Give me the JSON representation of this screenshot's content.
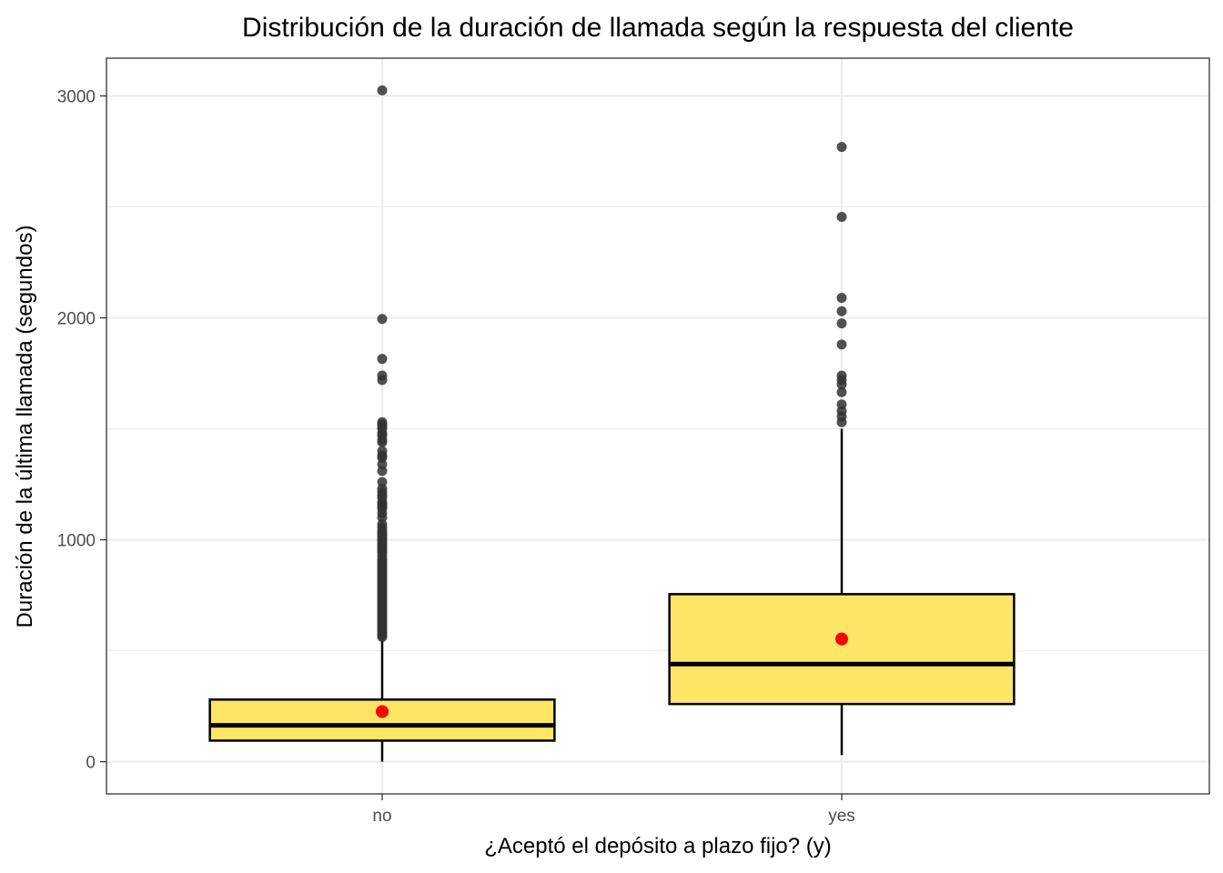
{
  "chart_data": {
    "type": "boxplot",
    "title": "Distribución de la duración de llamada según la respuesta del cliente",
    "xlabel": "¿Aceptó el depósito a plazo fijo? (y)",
    "ylabel": "Duración de la última llamada (segundos)",
    "categories": [
      "no",
      "yes"
    ],
    "ylim": [
      -145,
      3170
    ],
    "yticks": [
      0,
      1000,
      2000,
      3000
    ],
    "grid": true,
    "colors": {
      "box_fill": "#FFE566",
      "box_stroke": "#000000",
      "mean_point": "#FF0000",
      "outlier": "#333333",
      "grid": "#EBEBEB",
      "panel_border": "#333333"
    },
    "boxes": [
      {
        "category": "no",
        "min": 0,
        "q1": 95,
        "median": 164,
        "q3": 280,
        "whisker_high": 555,
        "mean": 226,
        "outliers": [
          3025,
          1995,
          1815,
          1740,
          1720,
          1530,
          1520,
          1510,
          1500,
          1480,
          1470,
          1450,
          1440,
          1400,
          1380,
          1370,
          1340,
          1310,
          1260,
          1230,
          1215,
          1200,
          1190,
          1170,
          1160,
          1150,
          1140,
          1120,
          1100,
          1070,
          1055,
          1040,
          1030,
          1020,
          1010,
          1000,
          990,
          980,
          970,
          960,
          950,
          940,
          925,
          910,
          900,
          890,
          880,
          870,
          860,
          850,
          840,
          830,
          820,
          810,
          800,
          790,
          780,
          770,
          760,
          750,
          740,
          730,
          720,
          710,
          700,
          690,
          680,
          670,
          660,
          650,
          640,
          630,
          620,
          610,
          600,
          590,
          580,
          570,
          562
        ]
      },
      {
        "category": "yes",
        "min": 30,
        "q1": 260,
        "median": 440,
        "q3": 755,
        "whisker_high": 1500,
        "mean": 553,
        "outliers": [
          2770,
          2455,
          2090,
          2030,
          1975,
          1880,
          1740,
          1720,
          1700,
          1665,
          1610,
          1580,
          1555,
          1530
        ]
      }
    ]
  }
}
